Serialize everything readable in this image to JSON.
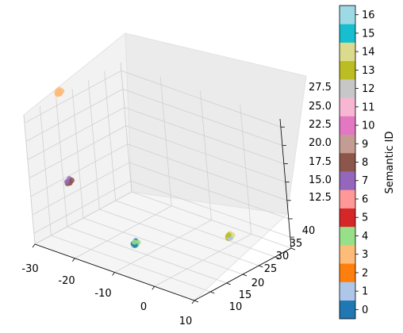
{
  "chart_data": {
    "type": "scatter",
    "projection": "3d",
    "grid": true,
    "legend": "none",
    "axes": {
      "x": {
        "range": [
          -30,
          10
        ],
        "ticks": [
          "-30",
          "-20",
          "-10",
          "0",
          "10"
        ]
      },
      "y": {
        "range": [
          10,
          40
        ],
        "ticks": [
          "10",
          "15",
          "20",
          "25",
          "30",
          "35",
          "40"
        ]
      },
      "z": {
        "range": [
          12.5,
          27.5
        ],
        "ticks": [
          "12.5",
          "15.0",
          "17.5",
          "20.0",
          "22.5",
          "25.0",
          "27.5"
        ]
      }
    },
    "clusters": [
      {
        "ids": [
          3
        ],
        "x": -30,
        "y": 21,
        "z": 29,
        "approx_points": 8
      },
      {
        "ids": [
          7,
          8
        ],
        "x": -25,
        "y": 16,
        "z": 19,
        "approx_points": 6
      },
      {
        "ids": [
          0,
          4
        ],
        "x": -4,
        "y": 10,
        "z": 16,
        "approx_points": 8
      },
      {
        "ids": [
          1,
          13,
          14
        ],
        "x": 4,
        "y": 29,
        "z": 14,
        "approx_points": 8
      }
    ],
    "colorbar": {
      "label": "Semantic ID",
      "ticks": [
        "0",
        "1",
        "2",
        "3",
        "4",
        "5",
        "6",
        "7",
        "8",
        "9",
        "10",
        "11",
        "12",
        "13",
        "14",
        "15",
        "16"
      ],
      "colors": [
        "#1f77b4",
        "#aec7e8",
        "#ff7f0e",
        "#ffbb78",
        "#98df8a",
        "#d62728",
        "#ff9896",
        "#9467bd",
        "#8c564b",
        "#c49c94",
        "#e377c2",
        "#f7b6d2",
        "#c7c7c7",
        "#bcbd22",
        "#dbdb8d",
        "#17becf",
        "#9edae5"
      ]
    }
  }
}
